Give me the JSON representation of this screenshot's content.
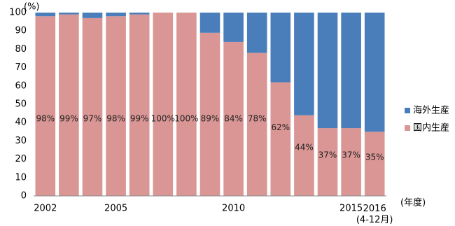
{
  "chart_data": {
    "type": "stacked-bar",
    "y_unit": "(%)",
    "x_unit": "(年度)",
    "categories": [
      "2002",
      null,
      null,
      "2005",
      null,
      null,
      null,
      null,
      "2010",
      null,
      null,
      null,
      null,
      "2015",
      "2016\n(4-12月)"
    ],
    "series": [
      {
        "name": "海外生産",
        "color": "#4a7ebb",
        "values": [
          2,
          1,
          3,
          2,
          1,
          0,
          0,
          11,
          16,
          22,
          38,
          56,
          63,
          63,
          65
        ]
      },
      {
        "name": "国内生産",
        "color": "#d99694",
        "values": [
          98,
          99,
          97,
          98,
          99,
          100,
          100,
          89,
          84,
          78,
          62,
          44,
          37,
          37,
          35
        ],
        "value_labels": [
          "98%",
          "99%",
          "97%",
          "98%",
          "99%",
          "100%",
          "100%",
          "89%",
          "84%",
          "78%",
          "62%",
          "44%",
          "37%",
          "37%",
          "35%"
        ]
      }
    ],
    "ylim": [
      0,
      100
    ],
    "yticks": [
      0,
      10,
      20,
      30,
      40,
      50,
      60,
      70,
      80,
      90,
      100
    ],
    "legend": "right"
  }
}
